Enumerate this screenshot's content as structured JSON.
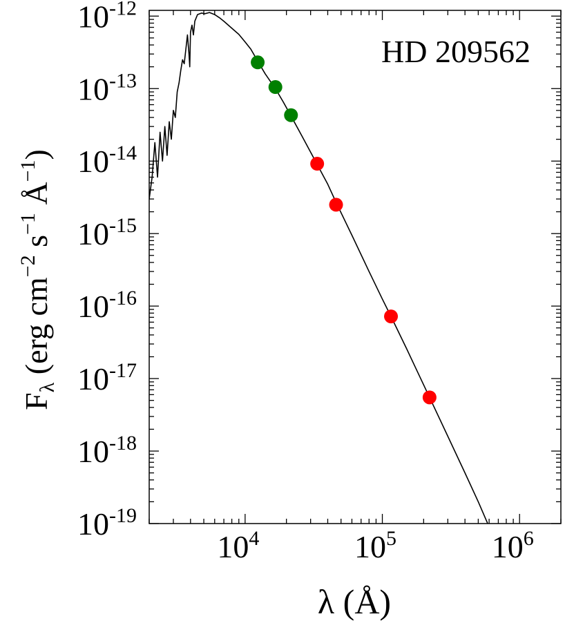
{
  "chart_data": {
    "type": "scatter",
    "title": "HD 209562",
    "xlabel": "λ (Å)",
    "ylabel": {
      "main": "F",
      "sub": "λ",
      "rest1": " (erg cm",
      "exp1": "−2",
      "rest2": " s",
      "exp2": "−1",
      "rest3": " Å",
      "exp3": "−1",
      "rest4": ")"
    },
    "xscale": "log",
    "yscale": "log",
    "xlim": [
      2000,
      2000000
    ],
    "ylim": [
      1e-19,
      1.2e-12
    ],
    "x_ticks": [
      {
        "base": "10",
        "exp": "4",
        "value": 10000
      },
      {
        "base": "10",
        "exp": "5",
        "value": 100000
      },
      {
        "base": "10",
        "exp": "6",
        "value": 1000000
      }
    ],
    "y_ticks": [
      {
        "base": "10",
        "exp": "-12",
        "value": 1e-12
      },
      {
        "base": "10",
        "exp": "-13",
        "value": 1e-13
      },
      {
        "base": "10",
        "exp": "-14",
        "value": 1e-14
      },
      {
        "base": "10",
        "exp": "-15",
        "value": 1e-15
      },
      {
        "base": "10",
        "exp": "-16",
        "value": 1e-16
      },
      {
        "base": "10",
        "exp": "-17",
        "value": 1e-17
      },
      {
        "base": "10",
        "exp": "-18",
        "value": 1e-18
      },
      {
        "base": "10",
        "exp": "-19",
        "value": 1e-19
      }
    ],
    "model_spectrum": {
      "color": "#000000",
      "points": [
        [
          2000,
          3e-15
        ],
        [
          2100,
          6e-15
        ],
        [
          2200,
          1.8e-14
        ],
        [
          2300,
          6e-15
        ],
        [
          2400,
          2.5e-14
        ],
        [
          2500,
          1e-14
        ],
        [
          2600,
          3e-14
        ],
        [
          2700,
          1.2e-14
        ],
        [
          2800,
          3.5e-14
        ],
        [
          2900,
          2e-14
        ],
        [
          3000,
          5e-14
        ],
        [
          3100,
          4e-14
        ],
        [
          3200,
          9e-14
        ],
        [
          3300,
          1.2e-13
        ],
        [
          3400,
          1.8e-13
        ],
        [
          3500,
          2.5e-13
        ],
        [
          3600,
          2.2e-13
        ],
        [
          3700,
          3.5e-13
        ],
        [
          3800,
          5.5e-13
        ],
        [
          3900,
          3e-13
        ],
        [
          3950,
          2e-13
        ],
        [
          4000,
          6e-13
        ],
        [
          4100,
          7.5e-13
        ],
        [
          4200,
          5.5e-13
        ],
        [
          4300,
          8.5e-13
        ],
        [
          4500,
          1.05e-12
        ],
        [
          4800,
          1.1e-12
        ],
        [
          5100,
          1.08e-12
        ],
        [
          5500,
          1.12e-12
        ],
        [
          6000,
          1.05e-12
        ],
        [
          6500,
          9.5e-13
        ],
        [
          7000,
          8.5e-13
        ],
        [
          8000,
          6.8e-13
        ],
        [
          9000,
          5.6e-13
        ],
        [
          10000,
          4.4e-13
        ],
        [
          11000,
          3.5e-13
        ],
        [
          12350,
          2.4e-13
        ],
        [
          14000,
          1.6e-13
        ],
        [
          16620,
          1e-13
        ],
        [
          19000,
          6.5e-14
        ],
        [
          21590,
          4.2e-14
        ],
        [
          26000,
          2.2e-14
        ],
        [
          33500,
          9e-15
        ],
        [
          40000,
          4.8e-15
        ],
        [
          46000,
          2.7e-15
        ],
        [
          60000,
          9.5e-16
        ],
        [
          80000,
          3e-16
        ],
        [
          100000,
          1.25e-16
        ],
        [
          115600,
          7.2e-17
        ],
        [
          150000,
          2.6e-17
        ],
        [
          180000,
          1.25e-17
        ],
        [
          220800,
          5.5e-18
        ],
        [
          300000,
          1.6e-18
        ],
        [
          400000,
          5e-19
        ],
        [
          500000,
          2e-19
        ],
        [
          600000,
          9e-20
        ]
      ]
    },
    "series": [
      {
        "color": "#008000",
        "points": [
          [
            12350,
            2.3e-13
          ],
          [
            16620,
            1.05e-13
          ],
          [
            21590,
            4.3e-14
          ]
        ]
      },
      {
        "color": "#ff0000",
        "points": [
          [
            33500,
            9.2e-15
          ],
          [
            46000,
            2.5e-15
          ],
          [
            115600,
            7.2e-17
          ],
          [
            220800,
            5.5e-18
          ]
        ]
      }
    ],
    "grid": false
  }
}
